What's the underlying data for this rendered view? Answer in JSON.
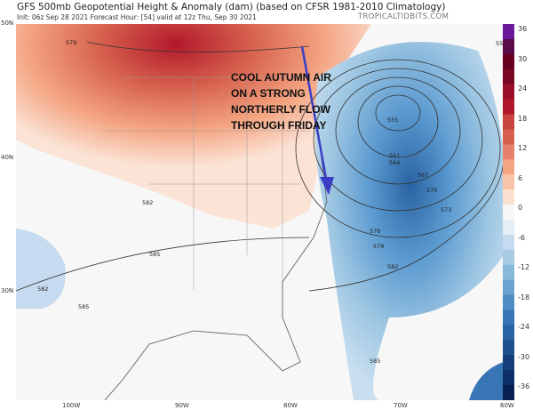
{
  "header": {
    "title": "GFS 500mb Geopotential Height & Anomaly (dam) (based on CFSR 1981-2010 Climatology)",
    "subtitle": "Init: 06z Sep 28 2021   Forecast Hour: [54]   valid at 12z Thu, Sep 30 2021",
    "brand": "TROPICALTIDBITS.COM"
  },
  "annotation": {
    "lines": [
      "COOL AUTUMN AIR",
      "ON A STRONG",
      "NORTHERLY FLOW",
      "THROUGH FRIDAY"
    ],
    "arrow_color": "#3b3fc4"
  },
  "lat_labels": [
    "50N",
    "40N",
    "30N"
  ],
  "lon_labels": [
    "100W",
    "90W",
    "80W",
    "70W",
    "60W"
  ],
  "contour_labels": [
    "558",
    "555",
    "561",
    "564",
    "567",
    "570",
    "573",
    "576",
    "579",
    "582",
    "585",
    "579",
    "582",
    "585",
    "582",
    "585"
  ],
  "colorbar": {
    "ticks": [
      "36",
      "30",
      "24",
      "18",
      "12",
      "6",
      "0",
      "-6",
      "-12",
      "-18",
      "-24",
      "-30",
      "-36"
    ],
    "colors": [
      "#f7f7f7",
      "#fbe0d0",
      "#f8c4a8",
      "#f3a582",
      "#e6806a",
      "#d6604d",
      "#c8443f",
      "#b2182b",
      "#9a0f27",
      "#7a0822",
      "#67001f",
      "#5b0a4a",
      "#6a1b9a"
    ],
    "neg_colors": [
      "#e3eef5",
      "#c6dbef",
      "#a6cbe3",
      "#87b7d9",
      "#6aa3cf",
      "#4d8dc3",
      "#3775b4",
      "#2a63a3",
      "#1d508f",
      "#143f7a",
      "#0b2f66",
      "#08204f"
    ]
  }
}
